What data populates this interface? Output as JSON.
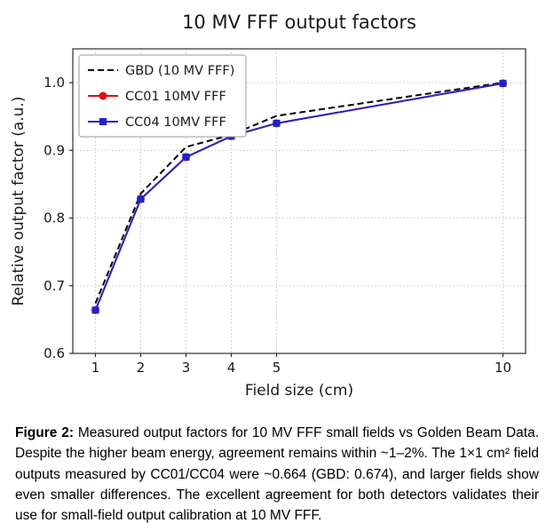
{
  "figure": {
    "caption_label": "Figure 2:",
    "caption_text": " Measured output factors for 10 MV FFF small fields vs Golden Beam Data. Despite the higher beam energy, agreement remains within ~1–2%. The 1×1 cm² field outputs measured by CC01/CC04 were ~0.664 (GBD: 0.674), and larger fields show even smaller differences. The excellent agreement for both detectors validates their use for small-field output calibration at 10 MV FFF."
  },
  "chart_data": {
    "type": "line",
    "title": "10 MV FFF output factors",
    "xlabel": "Field size (cm)",
    "ylabel": "Relative output factor (a.u.)",
    "x": [
      1,
      2,
      3,
      4,
      5,
      10
    ],
    "xticks": [
      1,
      2,
      3,
      4,
      5,
      10
    ],
    "yticks": [
      0.6,
      0.7,
      0.8,
      0.9,
      1.0
    ],
    "xlim": [
      0.5,
      10.5
    ],
    "ylim": [
      0.6,
      1.05
    ],
    "grid": true,
    "grid_color": "#c9c9c9",
    "spine_color": "#2b2b2b",
    "legend_position": "upper left",
    "series": [
      {
        "name": "GBD (10 MV FFF)",
        "color": "#000000",
        "style": "dashed",
        "marker": "none",
        "values": [
          0.674,
          0.836,
          0.905,
          0.923,
          0.951,
          1.0
        ]
      },
      {
        "name": "CC01 10MV FFF",
        "color": "#dd1111",
        "style": "solid",
        "marker": "circle",
        "values": [
          0.664,
          0.828,
          0.89,
          0.921,
          0.94,
          0.999
        ]
      },
      {
        "name": "CC04 10MV FFF",
        "color": "#2222cc",
        "style": "solid",
        "marker": "square",
        "opacity": 0.9,
        "values": [
          0.664,
          0.828,
          0.89,
          0.921,
          0.94,
          0.999
        ]
      }
    ]
  }
}
